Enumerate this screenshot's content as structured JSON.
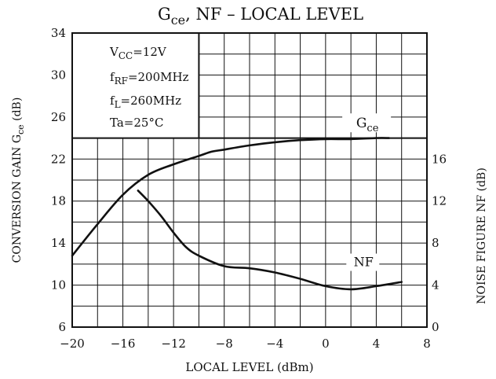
{
  "chart_data": {
    "type": "line",
    "title": {
      "main": "G",
      "main_sub": "ce",
      "rest": ", NF  –  LOCAL LEVEL"
    },
    "xlabel": "LOCAL LEVEL   (dBm)",
    "ylabel_left": {
      "text": "CONVERSION GAIN   G",
      "sub": "ce",
      "unit": "(dB)"
    },
    "ylabel_right": "NOISE   FIGURE   NF   (dB)",
    "xlim": [
      -20,
      8
    ],
    "ylim_left": [
      6,
      34
    ],
    "ylim_right": [
      0,
      18
    ],
    "x_ticks": [
      {
        "value": -20,
        "label": "−20"
      },
      {
        "value": -16,
        "label": "−16"
      },
      {
        "value": -12,
        "label": "−12"
      },
      {
        "value": -8,
        "label": "−8"
      },
      {
        "value": -4,
        "label": "−4"
      },
      {
        "value": 0,
        "label": "0"
      },
      {
        "value": 4,
        "label": "4"
      },
      {
        "value": 8,
        "label": "8"
      }
    ],
    "y_left_ticks": [
      {
        "value": 6,
        "label": "6"
      },
      {
        "value": 10,
        "label": "10"
      },
      {
        "value": 14,
        "label": "14"
      },
      {
        "value": 18,
        "label": "18"
      },
      {
        "value": 22,
        "label": "22"
      },
      {
        "value": 26,
        "label": "26"
      },
      {
        "value": 30,
        "label": "30"
      },
      {
        "value": 34,
        "label": "34"
      }
    ],
    "y_right_ticks": [
      {
        "value": 0,
        "label": "0"
      },
      {
        "value": 4,
        "label": "4"
      },
      {
        "value": 8,
        "label": "8"
      },
      {
        "value": 12,
        "label": "12"
      },
      {
        "value": 16,
        "label": "16"
      }
    ],
    "grid": true,
    "conditions": [
      {
        "main": "V",
        "sub": "CC",
        "rest": "=12V"
      },
      {
        "main": "f",
        "sub": "RF",
        "rest": "=200MHz"
      },
      {
        "main": "f",
        "sub": "L",
        "rest": "=260MHz"
      },
      {
        "main": "Ta",
        "sub": "",
        "rest": "=25°C"
      }
    ],
    "series": [
      {
        "name": "G",
        "name_sub": "ce",
        "axis": "left",
        "x": [
          -20,
          -18,
          -16,
          -14,
          -12,
          -10,
          -9,
          -8,
          -6,
          -4,
          -2,
          0,
          2,
          4,
          5
        ],
        "y": [
          12.8,
          15.8,
          18.6,
          20.5,
          21.5,
          22.3,
          22.7,
          22.9,
          23.3,
          23.6,
          23.8,
          23.9,
          23.9,
          24.0,
          24.0
        ]
      },
      {
        "name": "NF",
        "name_sub": "",
        "axis": "right",
        "x": [
          -14.8,
          -14,
          -13,
          -12,
          -11,
          -10,
          -8,
          -6,
          -4,
          -2,
          0,
          2,
          4,
          6
        ],
        "y": [
          13.0,
          12.0,
          10.6,
          9.0,
          7.6,
          6.8,
          5.8,
          5.6,
          5.2,
          4.6,
          3.9,
          3.6,
          3.9,
          4.3
        ]
      }
    ]
  }
}
